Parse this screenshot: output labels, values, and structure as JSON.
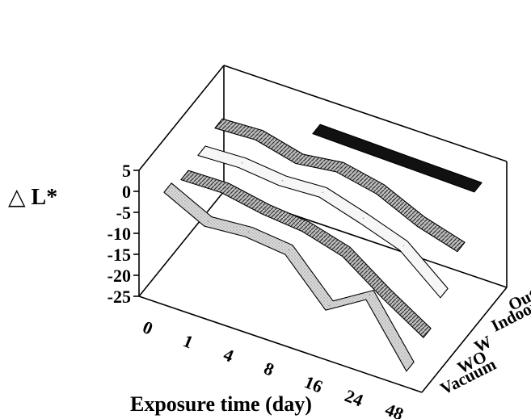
{
  "chart_data": {
    "type": "line",
    "style": "3d-ribbon",
    "title": "",
    "xlabel": "Exposure time (day)",
    "ylabel": "△ L*",
    "ylim": [
      -25,
      5
    ],
    "yticks": [
      "5",
      "0",
      "-5",
      "-10",
      "-15",
      "-20",
      "-25"
    ],
    "categories": [
      "0",
      "1",
      "4",
      "8",
      "16",
      "24",
      "48"
    ],
    "depth_labels": [
      "Vacuum",
      "WO",
      "W",
      "Indoor",
      "Outdoor"
    ],
    "grid": false,
    "series": [
      {
        "name": "Vacuum",
        "color": "#111111",
        "values": [
          null,
          null,
          0.5,
          0.3,
          0.1,
          -0.1,
          -0.3
        ]
      },
      {
        "name": "WO",
        "color": "#a8a8a8",
        "values": [
          0.3,
          0.8,
          -1.6,
          -0.3,
          -2.3,
          -6.7,
          -9.5
        ]
      },
      {
        "name": "W",
        "color": "#f6f6f6",
        "values": [
          -1.2,
          -0.8,
          -1.8,
          -1.3,
          -4.2,
          -7.5,
          -15.5
        ]
      },
      {
        "name": "Indoor",
        "color": "#d8d8d8",
        "values": [
          -2.0,
          -1.8,
          -3.6,
          -4.5,
          -7.2,
          -14.0,
          -20.0
        ]
      },
      {
        "name": "Outdoor",
        "color": "#b8b8b8",
        "values": [
          0.0,
          -4.8,
          -4.0,
          -5.0,
          -15.0,
          -9.2,
          -23.0
        ]
      }
    ]
  }
}
